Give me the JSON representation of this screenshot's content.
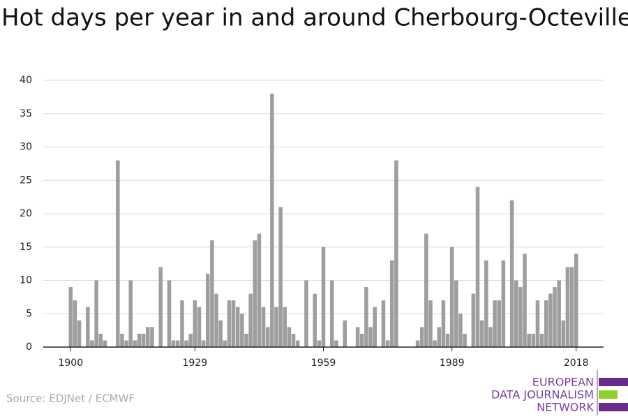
{
  "chart_data": {
    "type": "bar",
    "title": "Hot days per year in and around Cherbourg-Octeville",
    "x": [
      1900,
      1901,
      1902,
      1903,
      1904,
      1905,
      1906,
      1907,
      1908,
      1909,
      1910,
      1911,
      1912,
      1913,
      1914,
      1915,
      1916,
      1917,
      1918,
      1919,
      1920,
      1921,
      1922,
      1923,
      1924,
      1925,
      1926,
      1927,
      1928,
      1929,
      1930,
      1931,
      1932,
      1933,
      1934,
      1935,
      1936,
      1937,
      1938,
      1939,
      1940,
      1941,
      1942,
      1943,
      1944,
      1945,
      1946,
      1947,
      1948,
      1949,
      1950,
      1951,
      1952,
      1953,
      1954,
      1955,
      1956,
      1957,
      1958,
      1959,
      1960,
      1961,
      1962,
      1963,
      1964,
      1965,
      1966,
      1967,
      1968,
      1969,
      1970,
      1971,
      1972,
      1973,
      1974,
      1975,
      1976,
      1977,
      1978,
      1979,
      1980,
      1981,
      1982,
      1983,
      1984,
      1985,
      1986,
      1987,
      1988,
      1989,
      1990,
      1991,
      1992,
      1993,
      1994,
      1995,
      1996,
      1997,
      1998,
      1999,
      2000,
      2001,
      2002,
      2003,
      2004,
      2005,
      2006,
      2007,
      2008,
      2009,
      2010,
      2011,
      2012,
      2013,
      2014,
      2015,
      2016,
      2017,
      2018
    ],
    "values": [
      9,
      7,
      4,
      0,
      6,
      1,
      10,
      2,
      1,
      0,
      0,
      28,
      2,
      1,
      10,
      1,
      2,
      2,
      3,
      3,
      0,
      12,
      0,
      10,
      1,
      1,
      7,
      1,
      2,
      7,
      6,
      1,
      11,
      16,
      8,
      4,
      1,
      7,
      7,
      6,
      5,
      2,
      8,
      16,
      17,
      6,
      3,
      38,
      6,
      21,
      6,
      3,
      2,
      1,
      0,
      10,
      0,
      8,
      1,
      15,
      0,
      10,
      1,
      0,
      4,
      0,
      0,
      3,
      2,
      9,
      3,
      6,
      0,
      7,
      1,
      13,
      28,
      0,
      0,
      0,
      0,
      1,
      3,
      17,
      7,
      1,
      3,
      7,
      2,
      15,
      10,
      5,
      2,
      0,
      8,
      24,
      4,
      13,
      3,
      7,
      7,
      13,
      0,
      22,
      10,
      9,
      14,
      2,
      2,
      7,
      2,
      7,
      8,
      9,
      10,
      4,
      12,
      12,
      14
    ],
    "color": "#9e9e9e",
    "xlim": [
      1893.6,
      2024.4
    ],
    "xticks": [
      1900,
      1929,
      1959,
      1989,
      2018
    ],
    "ylim": [
      0,
      40
    ],
    "yticks": [
      0,
      5,
      10,
      15,
      20,
      25,
      30,
      35,
      40
    ],
    "grid": true,
    "source": "Source: EDJNet / ECMWF",
    "logo": [
      "EUROPEAN",
      "DATA JOURNALISM",
      "NETWORK"
    ]
  }
}
